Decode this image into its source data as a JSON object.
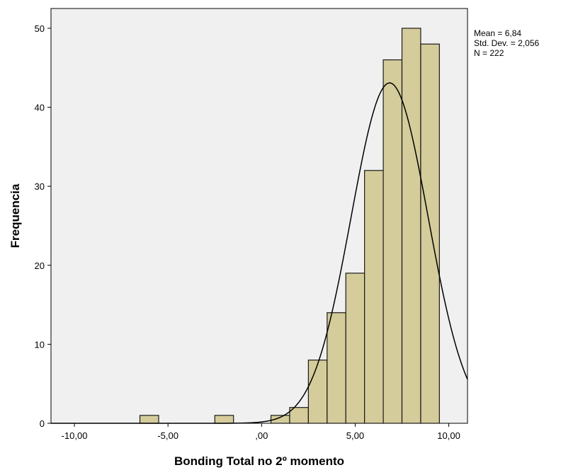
{
  "chart_data": {
    "type": "bar",
    "subtype": "histogram",
    "xlabel": "Bonding Total no 2º momento",
    "ylabel": "Frequencia",
    "xlim": [
      -11.25,
      11.0
    ],
    "ylim": [
      0,
      52.5
    ],
    "x_ticks": [
      {
        "value": -10,
        "label": "-10,00"
      },
      {
        "value": -5,
        "label": "-5,00"
      },
      {
        "value": 0,
        "label": ",00"
      },
      {
        "value": 5,
        "label": "5,00"
      },
      {
        "value": 10,
        "label": "10,00"
      }
    ],
    "y_ticks": [
      {
        "value": 0,
        "label": "0"
      },
      {
        "value": 10,
        "label": "10"
      },
      {
        "value": 20,
        "label": "20"
      },
      {
        "value": 30,
        "label": "30"
      },
      {
        "value": 40,
        "label": "40"
      },
      {
        "value": 50,
        "label": "50"
      }
    ],
    "bin_width": 1.0,
    "bins": [
      {
        "start": -6.5,
        "end": -5.5,
        "count": 1
      },
      {
        "start": -2.5,
        "end": -1.5,
        "count": 1
      },
      {
        "start": 0.5,
        "end": 1.5,
        "count": 1
      },
      {
        "start": 1.5,
        "end": 2.5,
        "count": 2
      },
      {
        "start": 2.5,
        "end": 3.5,
        "count": 8
      },
      {
        "start": 3.5,
        "end": 4.5,
        "count": 14
      },
      {
        "start": 4.5,
        "end": 5.5,
        "count": 19
      },
      {
        "start": 5.5,
        "end": 6.5,
        "count": 32
      },
      {
        "start": 6.5,
        "end": 7.5,
        "count": 46
      },
      {
        "start": 7.5,
        "end": 8.5,
        "count": 50
      },
      {
        "start": 8.5,
        "end": 9.5,
        "count": 48
      }
    ],
    "normal_curve": {
      "mean": 6.84,
      "std_dev": 2.056,
      "n": 222
    },
    "stats_lines": [
      "Mean = 6,84",
      "Std. Dev. = 2,056",
      "N = 222"
    ],
    "grid": false,
    "colors": {
      "bar_fill": "#d4cc9a",
      "bar_stroke": "#1a1a1a",
      "plot_background": "#f0f0f0",
      "curve": "#000000"
    }
  }
}
